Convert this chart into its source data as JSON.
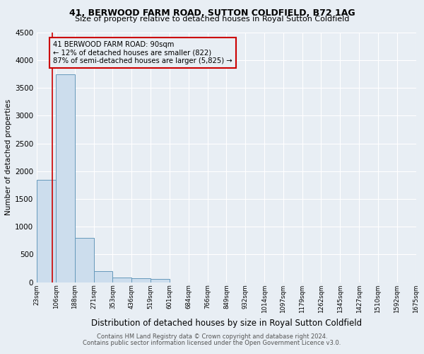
{
  "title1": "41, BERWOOD FARM ROAD, SUTTON COLDFIELD, B72 1AG",
  "title2": "Size of property relative to detached houses in Royal Sutton Coldfield",
  "xlabel": "Distribution of detached houses by size in Royal Sutton Coldfield",
  "ylabel": "Number of detached properties",
  "footer1": "Contains HM Land Registry data © Crown copyright and database right 2024.",
  "footer2": "Contains public sector information licensed under the Open Government Licence v3.0.",
  "bin_labels": [
    "23sqm",
    "106sqm",
    "188sqm",
    "271sqm",
    "353sqm",
    "436sqm",
    "519sqm",
    "601sqm",
    "684sqm",
    "766sqm",
    "849sqm",
    "932sqm",
    "1014sqm",
    "1097sqm",
    "1179sqm",
    "1262sqm",
    "1345sqm",
    "1427sqm",
    "1510sqm",
    "1592sqm",
    "1675sqm"
  ],
  "bar_values": [
    1850,
    3750,
    800,
    200,
    80,
    70,
    60,
    0,
    0,
    0,
    0,
    0,
    0,
    0,
    0,
    0,
    0,
    0,
    0,
    0
  ],
  "bar_color": "#ccdded",
  "bar_edge_color": "#6699bb",
  "ylim": [
    0,
    4500
  ],
  "yticks": [
    0,
    500,
    1000,
    1500,
    2000,
    2500,
    3000,
    3500,
    4000,
    4500
  ],
  "property_line_color": "#cc0000",
  "annotation_text": "41 BERWOOD FARM ROAD: 90sqm\n← 12% of detached houses are smaller (822)\n87% of semi-detached houses are larger (5,825) →",
  "annotation_box_color": "#cc0000",
  "background_color": "#e8eef4",
  "plot_bg_color": "#e8eef4",
  "grid_color": "#ffffff",
  "title_fontsize": 9,
  "subtitle_fontsize": 8
}
